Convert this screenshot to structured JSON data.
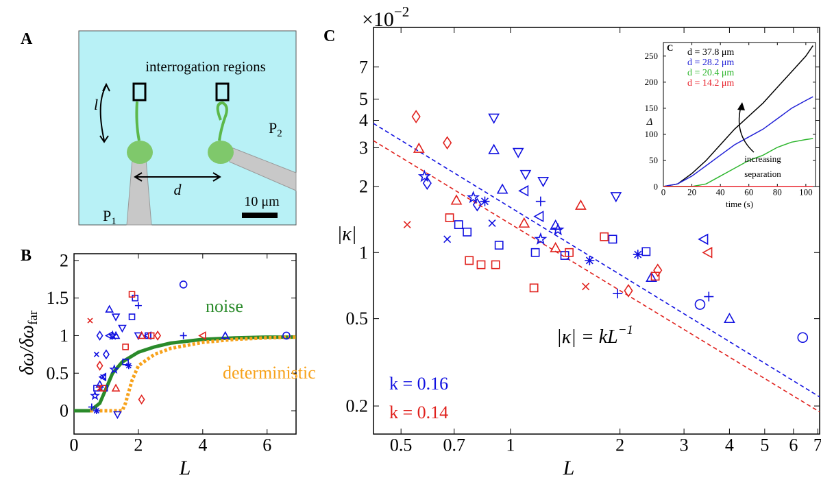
{
  "diagram": {
    "panel": "A",
    "label": "interrogation regions",
    "length": "l",
    "distance": "d",
    "pipette_left": "P",
    "pipette_left_sub": "1",
    "pipette_right": "P",
    "pipette_right_sub": "2",
    "scale_bar": "10 μm"
  },
  "chart_data": [
    {
      "type": "scatter",
      "panel": "B",
      "xlabel": "L",
      "ylabel": "δω/δω",
      "ylabel_subscript": "far",
      "xlim": [
        0,
        6.9
      ],
      "ylim": [
        -0.31,
        2.09
      ],
      "xticks": [
        0,
        2,
        4,
        6
      ],
      "yticks": [
        0,
        0.5,
        1,
        1.5,
        2
      ],
      "lines": [
        {
          "name": "noise",
          "color": "#2a8a2a",
          "style": "solid",
          "x": [
            0,
            0.5,
            0.8,
            1,
            1.2,
            1.5,
            2,
            2.5,
            3,
            4,
            5,
            6,
            6.9
          ],
          "values": [
            0,
            0,
            0.1,
            0.3,
            0.5,
            0.65,
            0.78,
            0.85,
            0.9,
            0.95,
            0.97,
            0.98,
            0.98
          ]
        },
        {
          "name": "deterministic",
          "color": "#f7a21b",
          "style": "dotted",
          "x": [
            0.5,
            1,
            1.5,
            1.6,
            1.8,
            2,
            2.5,
            3,
            4,
            5,
            6,
            6.9
          ],
          "values": [
            0,
            0,
            0,
            0.1,
            0.4,
            0.6,
            0.75,
            0.83,
            0.91,
            0.95,
            0.97,
            0.98
          ]
        }
      ],
      "series": [
        {
          "marker": "down",
          "color": "#1010e0",
          "x": [
            1.3,
            1.5,
            2.0,
            1.35
          ],
          "values": [
            1.25,
            1.1,
            1.0,
            -0.05
          ]
        },
        {
          "marker": "up",
          "color": "#1010e0",
          "x": [
            1.1,
            1.3,
            4.7,
            0.8
          ],
          "values": [
            1.35,
            1.0,
            1.0,
            0.35
          ]
        },
        {
          "marker": "left",
          "color": "#1010e0",
          "x": [
            1.1,
            2.3,
            0.9
          ],
          "values": [
            1.0,
            1.0,
            0.45
          ]
        },
        {
          "marker": "square",
          "color": "#1010e0",
          "x": [
            1.9,
            1.6,
            2.3,
            0.7,
            1.8,
            0.95
          ],
          "values": [
            1.5,
            0.65,
            1.0,
            0.3,
            1.25,
            0.3
          ]
        },
        {
          "marker": "circle",
          "color": "#1010e0",
          "x": [
            3.4,
            6.6
          ],
          "values": [
            1.68,
            1.0
          ]
        },
        {
          "marker": "plus",
          "color": "#1010e0",
          "x": [
            2.0,
            3.4,
            0.55
          ],
          "values": [
            1.4,
            1.0,
            0.05
          ]
        },
        {
          "marker": "cross",
          "color": "#1010e0",
          "x": [
            0.7,
            0.9
          ],
          "values": [
            0.75,
            0.45
          ]
        },
        {
          "marker": "star",
          "color": "#1010e0",
          "x": [
            1.2,
            1.25,
            0.65
          ],
          "values": [
            1.0,
            0.55,
            0.2
          ]
        },
        {
          "marker": "asterisk",
          "color": "#1010e0",
          "x": [
            1.7,
            0.7
          ],
          "values": [
            0.6,
            0.0
          ]
        },
        {
          "marker": "diamond",
          "color": "#1010e0",
          "x": [
            0.8,
            1.0
          ],
          "values": [
            1.0,
            0.75
          ]
        },
        {
          "marker": "square",
          "color": "#e0201c",
          "x": [
            1.8,
            0.9,
            1.6,
            2.4
          ],
          "values": [
            1.55,
            0.3,
            0.85,
            1.0
          ]
        },
        {
          "marker": "diamond",
          "color": "#e0201c",
          "x": [
            2.6,
            2.1,
            0.8
          ],
          "values": [
            1.0,
            0.15,
            0.6
          ]
        },
        {
          "marker": "up",
          "color": "#e0201c",
          "x": [
            2.1,
            1.3
          ],
          "values": [
            1.0,
            0.3
          ]
        },
        {
          "marker": "cross",
          "color": "#e0201c",
          "x": [
            0.5,
            0.8
          ],
          "values": [
            1.2,
            0.3
          ]
        },
        {
          "marker": "left",
          "color": "#e0201c",
          "x": [
            4.0
          ],
          "values": [
            1.0
          ]
        }
      ]
    },
    {
      "type": "scatter",
      "panel": "C",
      "log_scale": true,
      "xlabel": "L",
      "ylabel": "|κ|",
      "y_multiplier": "×10",
      "y_multiplier_exp": "−2",
      "xlim": [
        0.42,
        7.08
      ],
      "ylim": [
        0.149,
        10.6
      ],
      "xticks": [
        0.5,
        0.7,
        1,
        2,
        3,
        4,
        5,
        6,
        7
      ],
      "yticks": [
        0.2,
        0.5,
        1,
        2,
        3,
        4,
        5,
        7
      ],
      "formula": "|κ| = kL",
      "formula_exp": "−1",
      "lines": [
        {
          "name": "k = 0.16",
          "color": "#1010e0",
          "style": "dashed",
          "x": [
            0.42,
            7.08
          ],
          "values": [
            3.87,
            0.22
          ]
        },
        {
          "name": "k = 0.14",
          "color": "#e0201c",
          "style": "dashed",
          "x": [
            0.42,
            7.08
          ],
          "values": [
            3.23,
            0.188
          ]
        }
      ],
      "series": [
        {
          "marker": "down",
          "color": "#1010e0",
          "x": [
            0.9,
            1.05,
            1.1,
            1.23,
            1.95
          ],
          "values": [
            4.1,
            2.86,
            2.27,
            2.11,
            1.8
          ]
        },
        {
          "marker": "up",
          "color": "#1010e0",
          "x": [
            0.9,
            0.95,
            1.33,
            2.44,
            4.0
          ],
          "values": [
            2.94,
            1.94,
            1.33,
            0.77,
            0.5
          ]
        },
        {
          "marker": "left",
          "color": "#1010e0",
          "x": [
            1.09,
            1.2,
            3.4
          ],
          "values": [
            1.91,
            1.46,
            1.15
          ]
        },
        {
          "marker": "square",
          "color": "#1010e0",
          "x": [
            0.72,
            0.76,
            0.93,
            1.17,
            1.41,
            1.91,
            2.36
          ],
          "values": [
            1.34,
            1.24,
            1.08,
            1.0,
            0.97,
            1.15,
            1.01
          ]
        },
        {
          "marker": "circle",
          "color": "#1010e0",
          "x": [
            3.32,
            6.36
          ],
          "values": [
            0.58,
            0.41
          ]
        },
        {
          "marker": "plus",
          "color": "#1010e0",
          "x": [
            1.21,
            1.97,
            3.51
          ],
          "values": [
            1.71,
            0.65,
            0.63
          ]
        },
        {
          "marker": "cross",
          "color": "#1010e0",
          "x": [
            0.67,
            0.89
          ],
          "values": [
            1.15,
            1.36
          ]
        },
        {
          "marker": "star",
          "color": "#1010e0",
          "x": [
            0.58,
            0.79,
            1.21,
            1.35
          ],
          "values": [
            2.22,
            1.78,
            1.15,
            1.27
          ]
        },
        {
          "marker": "asterisk",
          "color": "#1010e0",
          "x": [
            0.85,
            1.65,
            2.24
          ],
          "values": [
            1.71,
            0.92,
            0.98
          ]
        },
        {
          "marker": "diamond",
          "color": "#1010e0",
          "x": [
            0.59,
            0.81
          ],
          "values": [
            2.07,
            1.65
          ]
        },
        {
          "marker": "diamond",
          "color": "#e0201c",
          "x": [
            0.55,
            0.67,
            2.11,
            2.54
          ],
          "values": [
            4.16,
            3.16,
            0.67,
            0.83
          ]
        },
        {
          "marker": "up",
          "color": "#e0201c",
          "x": [
            0.56,
            0.71,
            1.09,
            1.33,
            1.56
          ],
          "values": [
            2.98,
            1.73,
            1.36,
            1.05,
            1.64
          ]
        },
        {
          "marker": "square",
          "color": "#e0201c",
          "x": [
            0.68,
            0.77,
            0.83,
            0.91,
            1.16,
            1.45,
            1.81,
            2.5
          ],
          "values": [
            1.44,
            0.92,
            0.88,
            0.88,
            0.69,
            1.0,
            1.18,
            0.78
          ]
        },
        {
          "marker": "cross",
          "color": "#e0201c",
          "x": [
            0.52,
            1.61
          ],
          "values": [
            1.34,
            0.7
          ]
        },
        {
          "marker": "left",
          "color": "#e0201c",
          "x": [
            3.49
          ],
          "values": [
            1.0
          ]
        }
      ]
    },
    {
      "type": "line",
      "panel": "C",
      "xlabel": "time (s)",
      "ylabel": "Δ",
      "xlim": [
        0,
        106.8
      ],
      "ylim": [
        0,
        276
      ],
      "xticks": [
        0,
        20,
        40,
        60,
        80,
        100
      ],
      "yticks": [
        0,
        50,
        100,
        150,
        200,
        250
      ],
      "annotation": [
        "increasing",
        "separation"
      ],
      "x": [
        0,
        10,
        20,
        30,
        40,
        50,
        60,
        70,
        80,
        90,
        100,
        105
      ],
      "series": [
        {
          "name": "d = 37.8 μm",
          "color": "#000000",
          "values": [
            0,
            5,
            25,
            50,
            80,
            110,
            135,
            160,
            190,
            220,
            250,
            270
          ]
        },
        {
          "name": "d = 28.2 μm",
          "color": "#1f1fd6",
          "values": [
            0,
            5,
            20,
            40,
            60,
            80,
            95,
            110,
            130,
            150,
            165,
            172
          ]
        },
        {
          "name": "d = 20.4 μm",
          "color": "#2cb52c",
          "values": [
            0,
            0,
            0,
            5,
            20,
            35,
            50,
            60,
            75,
            85,
            90,
            92
          ]
        },
        {
          "name": "d = 14.2 μm",
          "color": "#e8202a",
          "values": [
            0,
            0,
            0,
            0,
            0,
            0,
            0,
            0,
            0,
            0,
            0,
            0
          ]
        }
      ]
    }
  ]
}
